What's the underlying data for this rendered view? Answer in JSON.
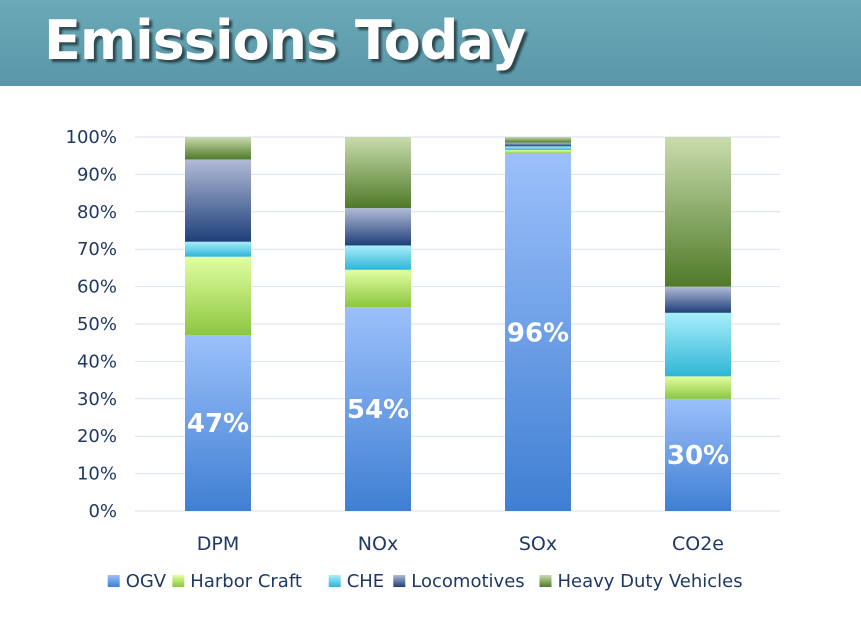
{
  "header": {
    "title": "Emissions Today"
  },
  "chart_data": {
    "type": "bar",
    "stacked": true,
    "percent": true,
    "categories": [
      "DPM",
      "NOx",
      "SOx",
      "CO2e"
    ],
    "series": [
      {
        "name": "OGV",
        "values": [
          47,
          54.5,
          95.5,
          30
        ]
      },
      {
        "name": "Harbor Craft",
        "values": [
          21,
          10,
          1,
          6
        ]
      },
      {
        "name": "CHE",
        "values": [
          4,
          6.5,
          1,
          17
        ]
      },
      {
        "name": "Locomotives",
        "values": [
          22,
          10,
          1,
          7
        ]
      },
      {
        "name": "Heavy Duty Vehicles",
        "values": [
          6,
          19,
          1.5,
          40
        ]
      }
    ],
    "data_labels": [
      {
        "category": "DPM",
        "series": "OGV",
        "text": "47%"
      },
      {
        "category": "NOx",
        "series": "OGV",
        "text": "54%"
      },
      {
        "category": "SOx",
        "series": "OGV",
        "text": "96%"
      },
      {
        "category": "CO2e",
        "series": "OGV",
        "text": "30%"
      }
    ],
    "yticks": [
      "0%",
      "10%",
      "20%",
      "30%",
      "40%",
      "50%",
      "60%",
      "70%",
      "80%",
      "90%",
      "100%"
    ],
    "ylim": [
      0,
      100
    ],
    "grid": true,
    "legend": "bottom"
  },
  "colors": {
    "OGV": [
      "#3f7fd2",
      "#9cc0fb"
    ],
    "Harbor Craft": [
      "#8cc63f",
      "#e2ffa2"
    ],
    "CHE": [
      "#2fb6d6",
      "#a8eefb"
    ],
    "Locomotives": [
      "#1f3f7a",
      "#b2bbd6"
    ],
    "Heavy Duty Vehicles": [
      "#4f7a28",
      "#c9dcad"
    ]
  }
}
